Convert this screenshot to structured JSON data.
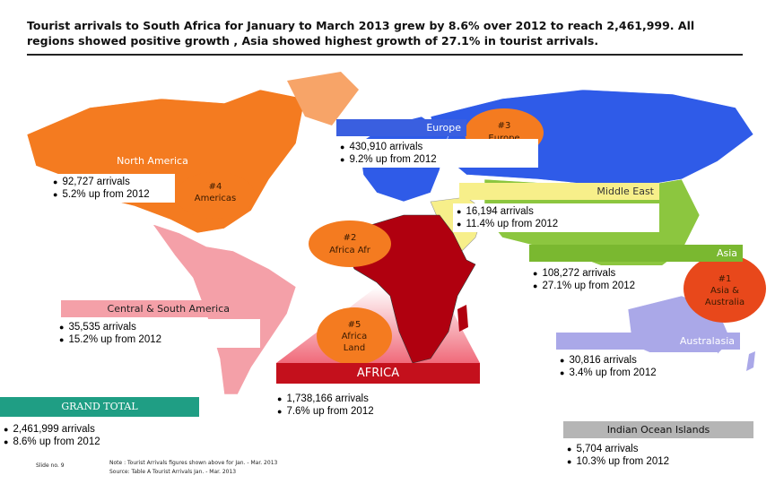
{
  "header": {
    "title": "Tourist arrivals to South Africa for January to March 2013 grew by 8.6% over 2012 to reach 2,461,999. All regions showed positive growth , Asia showed highest growth of 27.1% in tourist arrivals."
  },
  "regions": [
    {
      "name": "Europe",
      "bullets": [
        "430,910 arrivals",
        "9.2% up from 2012"
      ]
    },
    {
      "name": "North America",
      "bullets": [
        "92,727 arrivals",
        "5.2% up from 2012"
      ]
    },
    {
      "name": "Middle East",
      "bullets": [
        "16,194 arrivals",
        "11.4% up from 2012"
      ]
    },
    {
      "name": "Asia",
      "bullets": [
        "108,272 arrivals",
        "27.1% up from 2012"
      ]
    },
    {
      "name": "Central & South America",
      "bullets": [
        "35,535 arrivals",
        "15.2% up from 2012"
      ]
    },
    {
      "name": "Australasia",
      "bullets": [
        "30,816 arrivals",
        "3.4% up from 2012"
      ]
    },
    {
      "name": "AFRICA",
      "bullets": [
        "1,738,166 arrivals",
        "7.6% up from 2012"
      ]
    },
    {
      "name": "GRAND TOTAL",
      "bullets": [
        "2,461,999 arrivals",
        "8.6% up from 2012"
      ]
    },
    {
      "name": "Indian Ocean Islands",
      "bullets": [
        "5,704 arrivals",
        "10.3% up from 2012"
      ]
    }
  ],
  "ranks": [
    {
      "lines": [
        "#3",
        "Europe"
      ]
    },
    {
      "lines": [
        "#4",
        "Americas"
      ]
    },
    {
      "lines": [
        "#2",
        "Africa Afr"
      ]
    },
    {
      "lines": [
        "#1",
        "Asia &",
        "Australia"
      ]
    },
    {
      "lines": [
        "#5",
        "Africa",
        "Land"
      ]
    }
  ],
  "footer": {
    "slide": "Slide no. 9",
    "note": [
      "Note : Tourist Arrivals figures shown above for Jan. - Mar. 2013",
      "Source:  Table A Tourist Arrivals Jan. - Mar. 2013"
    ]
  }
}
